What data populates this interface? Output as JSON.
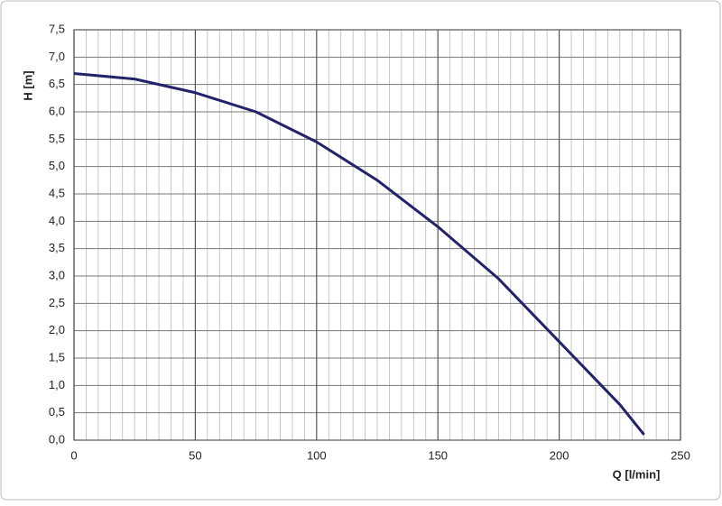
{
  "chart_data": {
    "type": "line",
    "x_label": "Q [l/min]",
    "y_label": "H [m]",
    "series": [
      {
        "color": "#23236b",
        "x": [
          0,
          25,
          50,
          75,
          100,
          125,
          150,
          175,
          200,
          225,
          235
        ],
        "values": [
          6.7,
          6.6,
          6.35,
          6.0,
          5.45,
          4.75,
          3.9,
          2.95,
          1.8,
          0.65,
          0.1
        ]
      }
    ],
    "xlim": [
      0,
      250
    ],
    "xticks": [
      0,
      50,
      100,
      150,
      200,
      250
    ],
    "ylim": [
      0,
      7.5
    ],
    "yticks": [
      {
        "value": 0,
        "label": "0,0"
      },
      {
        "value": 0.5,
        "label": "0,5"
      },
      {
        "value": 1,
        "label": "1,0"
      },
      {
        "value": 1.5,
        "label": "1,5"
      },
      {
        "value": 2,
        "label": "2,0"
      },
      {
        "value": 2.5,
        "label": "2,5"
      },
      {
        "value": 3,
        "label": "3,0"
      },
      {
        "value": 3.5,
        "label": "3,5"
      },
      {
        "value": 4,
        "label": "4,0"
      },
      {
        "value": 4.5,
        "label": "4,5"
      },
      {
        "value": 5,
        "label": "5,0"
      },
      {
        "value": 5.5,
        "label": "5,5"
      },
      {
        "value": 6,
        "label": "6,0"
      },
      {
        "value": 6.5,
        "label": "6,5"
      },
      {
        "value": 7,
        "label": "7,0"
      },
      {
        "value": 7.5,
        "label": "7,5"
      }
    ],
    "grid": true
  }
}
